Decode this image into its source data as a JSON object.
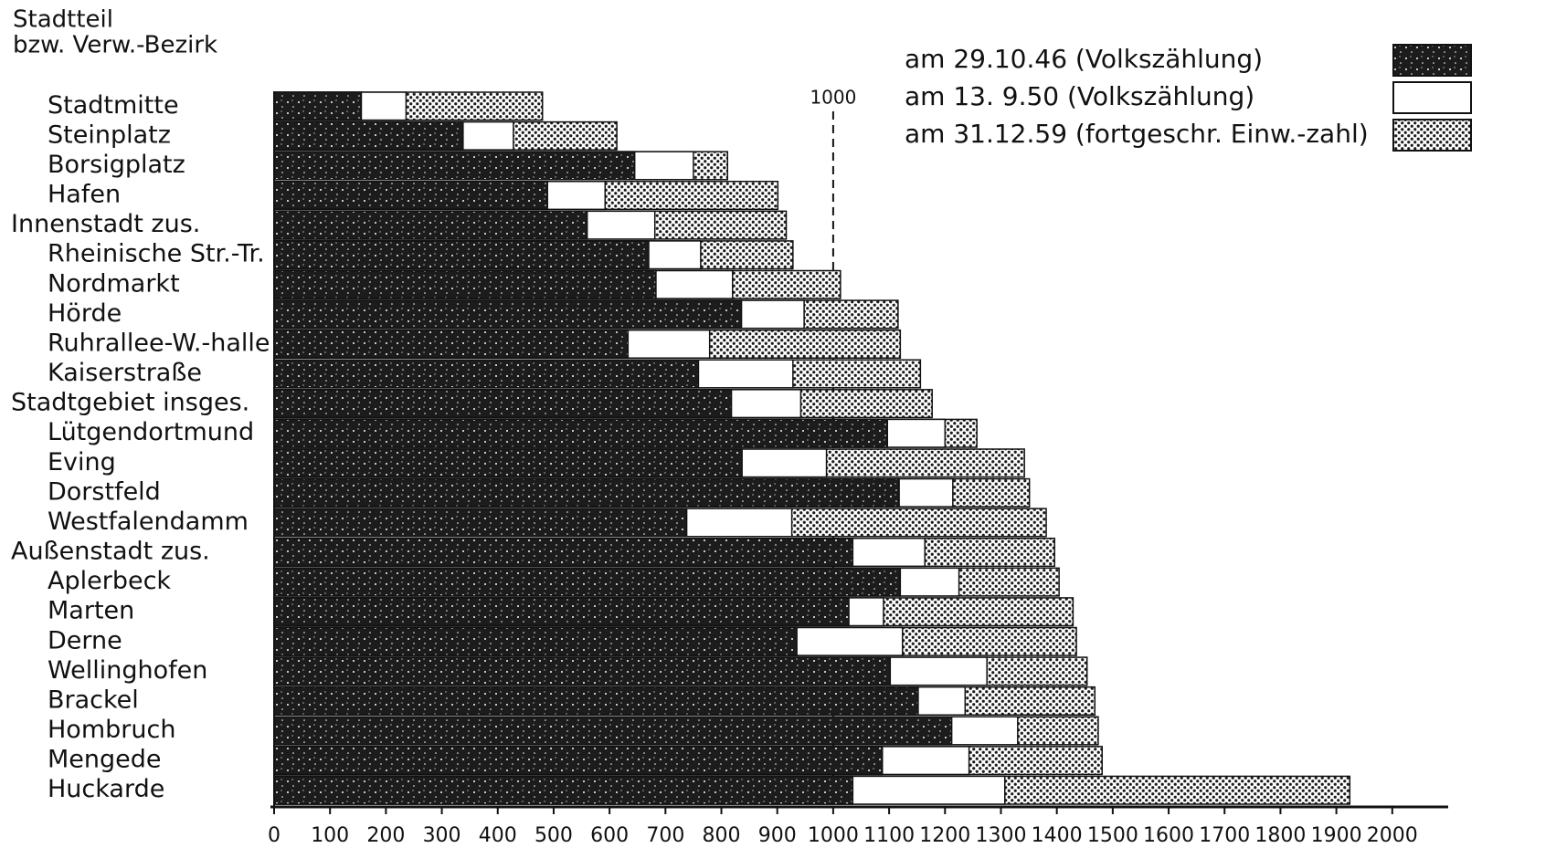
{
  "chart_data": {
    "type": "bar",
    "orientation": "horizontal",
    "ylabel": [
      "Stadtteil",
      "bzw. Verw.-Bezirk"
    ],
    "categories": [
      "Stadtmitte",
      "Steinplatz",
      "Borsigplatz",
      "Hafen",
      "Innenstadt zus.",
      "Rheinische Str.-Tr.",
      "Nordmarkt",
      "Hörde",
      "Ruhrallee-W.-halle",
      "Kaiserstraße",
      "Stadtgebiet insges.",
      "Lütgendortmund",
      "Eving",
      "Dorstfeld",
      "Westfalendamm",
      "Außenstadt zus.",
      "Aplerbeck",
      "Marten",
      "Derne",
      "Wellinghofen",
      "Brackel",
      "Hombruch",
      "Mengede",
      "Huckarde"
    ],
    "series": [
      {
        "name": "am 29.10.46 (Volkszählung)",
        "color": "#1c1c1c",
        "pattern": "noise",
        "values": [
          156,
          338,
          645,
          489,
          560,
          670,
          683,
          836,
          633,
          759,
          818,
          1097,
          837,
          1118,
          738,
          1035,
          1120,
          1028,
          935,
          1102,
          1152,
          1212,
          1088,
          1035
        ]
      },
      {
        "name": "am 13. 9.50 (Volkszählung)",
        "color": "#ffffff",
        "pattern": "none",
        "values": [
          236,
          428,
          750,
          592,
          681,
          763,
          820,
          948,
          779,
          928,
          942,
          1200,
          988,
          1214,
          926,
          1164,
          1225,
          1090,
          1124,
          1275,
          1236,
          1330,
          1243,
          1307
        ]
      },
      {
        "name": "am 31.12.59 (fortgeschr. Einw.-zahl)",
        "color": "#1c1c1c",
        "pattern": "dots",
        "values": [
          480,
          613,
          811,
          901,
          916,
          928,
          1013,
          1116,
          1120,
          1156,
          1177,
          1257,
          1342,
          1351,
          1381,
          1396,
          1404,
          1429,
          1435,
          1454,
          1468,
          1474,
          1481,
          1924
        ]
      }
    ],
    "xlim": [
      0,
      2100
    ],
    "xticks": [
      0,
      100,
      200,
      300,
      400,
      500,
      600,
      700,
      800,
      900,
      1000,
      1100,
      1200,
      1300,
      1400,
      1500,
      1600,
      1700,
      1800,
      1900,
      2000
    ],
    "reference_line": 1000,
    "legend": "top-right"
  }
}
